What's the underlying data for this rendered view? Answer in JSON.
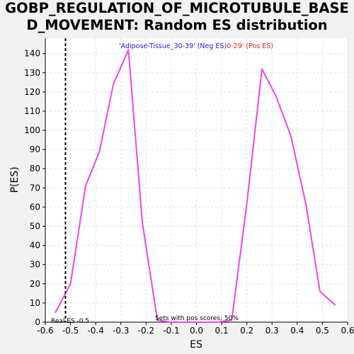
{
  "chart_data": {
    "type": "line",
    "title": "GOBP_REGULATION_OF_MICROTUBULE_BASED_MOVEMENT: Random ES distribution",
    "title_lines": [
      "GOBP_REGULATION_OF_MICROTUBULE_BASE",
      "D_MOVEMENT: Random ES distribution"
    ],
    "xlabel": "ES",
    "ylabel": "P(ES)",
    "xlim": [
      -0.6,
      0.6
    ],
    "ylim": [
      0,
      148
    ],
    "x_ticks": [
      "-0.6",
      "-0.5",
      "-0.4",
      "-0.3",
      "-0.2",
      "-0.1",
      "0.0",
      "0.1",
      "0.2",
      "0.3",
      "0.4",
      "0.5",
      "0.6"
    ],
    "y_ticks": [
      "0",
      "10",
      "20",
      "30",
      "40",
      "50",
      "60",
      "70",
      "80",
      "90",
      "100",
      "110",
      "120",
      "130",
      "140"
    ],
    "grid": true,
    "series": [
      {
        "color": "#ee44ee",
        "points": [
          [
            -0.56,
            5
          ],
          [
            -0.5,
            20
          ],
          [
            -0.44,
            71
          ],
          [
            -0.385,
            89
          ],
          [
            -0.33,
            124
          ],
          [
            -0.27,
            142
          ],
          [
            -0.215,
            52
          ],
          [
            -0.155,
            1
          ],
          [
            -0.1,
            0
          ],
          [
            -0.04,
            0
          ],
          [
            0.02,
            0
          ],
          [
            0.08,
            0
          ],
          [
            0.14,
            1
          ],
          [
            0.2,
            62
          ],
          [
            0.26,
            132
          ],
          [
            0.315,
            118
          ],
          [
            0.375,
            97
          ],
          [
            0.435,
            61
          ],
          [
            0.49,
            16
          ],
          [
            0.55,
            9
          ]
        ]
      }
    ],
    "legend": {
      "placement": "top-center",
      "neg_text": "'Adipose-Tissue_30-39' (Neg ES)",
      "neg_color": "#2222dd",
      "pos_text": "0-29' (Pos ES)",
      "pos_color": "#dd2222"
    },
    "real_es": {
      "value": -0.52,
      "label": "Real ES -0.5"
    },
    "annotation": "Sets with pos scores: 50%"
  }
}
